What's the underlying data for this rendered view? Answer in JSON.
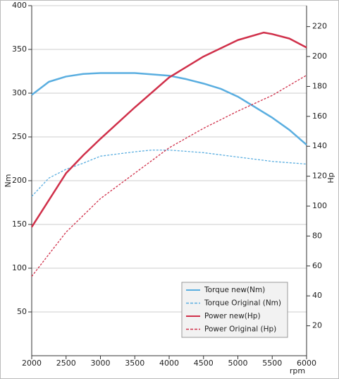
{
  "chart_data": {
    "type": "line",
    "x_label": "rpm",
    "y_label": "Nm",
    "y2_label": "Hp",
    "xlim": [
      2000,
      6000
    ],
    "xticks": [
      2000,
      2500,
      3000,
      3500,
      4000,
      4500,
      5000,
      5500,
      6000
    ],
    "ylim": [
      0,
      400
    ],
    "yticks": [
      50,
      100,
      150,
      200,
      250,
      300,
      350,
      400
    ],
    "y2lim": [
      0,
      234
    ],
    "y2ticks": [
      20,
      40,
      60,
      80,
      100,
      120,
      140,
      160,
      180,
      200,
      220
    ],
    "grid": true,
    "legend": "lower right",
    "series": [
      {
        "name": "Torque new(Nm)",
        "color": "#5aaee0",
        "dash": false,
        "x": [
          2000,
          2250,
          2500,
          2750,
          3000,
          3500,
          4000,
          4250,
          4500,
          4750,
          5000,
          5250,
          5500,
          5750,
          6000
        ],
        "values": [
          298,
          313,
          319,
          322,
          323,
          323,
          320,
          316,
          311,
          305,
          296,
          284,
          272,
          258,
          241
        ]
      },
      {
        "name": "Torque Original (Nm)",
        "color": "#5aaee0",
        "dash": true,
        "x": [
          2000,
          2250,
          2500,
          2750,
          3000,
          3500,
          3750,
          4000,
          4500,
          5000,
          5500,
          6000
        ],
        "values": [
          182,
          203,
          213,
          220,
          228,
          233,
          235,
          235,
          232,
          227,
          222,
          219
        ]
      },
      {
        "name": "Power new(Hp)",
        "color": "#d0304a",
        "dash": false,
        "axis": "y2",
        "x": [
          2000,
          2250,
          2500,
          2750,
          3000,
          3500,
          4000,
          4500,
          5000,
          5375,
          5500,
          5750,
          6000
        ],
        "values": [
          86,
          104,
          122,
          134,
          145,
          166,
          186,
          200,
          211,
          216,
          215,
          212,
          206
        ]
      },
      {
        "name": "Power Original (Hp)",
        "color": "#d0304a",
        "dash": true,
        "axis": "y2",
        "x": [
          2000,
          2500,
          3000,
          3500,
          4000,
          4500,
          5000,
          5500,
          6000
        ],
        "values": [
          53,
          82.6,
          105,
          122,
          139,
          152,
          163.5,
          174,
          187.5
        ]
      }
    ]
  }
}
